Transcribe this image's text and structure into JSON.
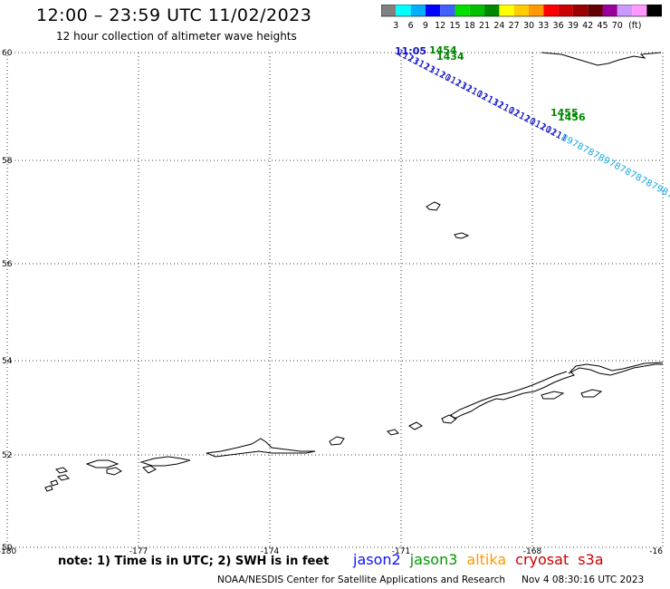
{
  "title": "12:00 – 23:59 UTC 11/02/2023",
  "subtitle": "12 hour collection of altimeter wave heights",
  "scale": {
    "colors": [
      "#808080",
      "#00ffff",
      "#00b0ff",
      "#0000ff",
      "#4060ff",
      "#00e000",
      "#00c000",
      "#008800",
      "#ffff00",
      "#ffcc00",
      "#ff9900",
      "#ff0000",
      "#cc0000",
      "#990000",
      "#660000",
      "#990099",
      "#cc99ff",
      "#ff99ff",
      "#000000"
    ],
    "labels": [
      "3",
      "6",
      "9",
      "12",
      "15",
      "18",
      "21",
      "24",
      "27",
      "30",
      "33",
      "36",
      "39",
      "42",
      "45",
      "70"
    ],
    "unit": "(ft)"
  },
  "axes": {
    "lat_labels": [
      "60",
      "58",
      "56",
      "54",
      "52",
      "50"
    ],
    "lon_labels": [
      "-180",
      "-177",
      "-174",
      "-171",
      "-168",
      "-16"
    ]
  },
  "tracks": {
    "time_labels": [
      "11:05",
      "1454",
      "1434",
      "1455",
      "1456"
    ],
    "swh_values": [
      "11",
      "12",
      "13",
      "11",
      "12",
      "13",
      "11",
      "12",
      "10",
      "11",
      "12",
      "13",
      "12",
      "11",
      "10",
      "12",
      "11",
      "13",
      "12",
      "11",
      "10",
      "12",
      "11",
      "12",
      "10",
      "11",
      "12",
      "10",
      "12",
      "11",
      "11",
      "8",
      "9",
      "7",
      "8",
      "7",
      "8",
      "7",
      "8",
      "9",
      "7",
      "8",
      "7",
      "8",
      "7",
      "8",
      "7",
      "8",
      "7",
      "9",
      "8",
      "7"
    ]
  },
  "note": "note: 1) Time is in UTC; 2) SWH is in feet",
  "satellites": [
    {
      "name": "jason2",
      "color": "#1010ff"
    },
    {
      "name": "jason3",
      "color": "#009900"
    },
    {
      "name": "altika",
      "color": "#ff9900"
    },
    {
      "name": "cryosat",
      "color": "#cc0000"
    },
    {
      "name": "s3a",
      "color": "#cc0000"
    }
  ],
  "footer": {
    "org": "NOAA/NESDIS Center for Satellite Applications and Research",
    "date": "Nov  4 08:30:16 UTC 2023"
  }
}
